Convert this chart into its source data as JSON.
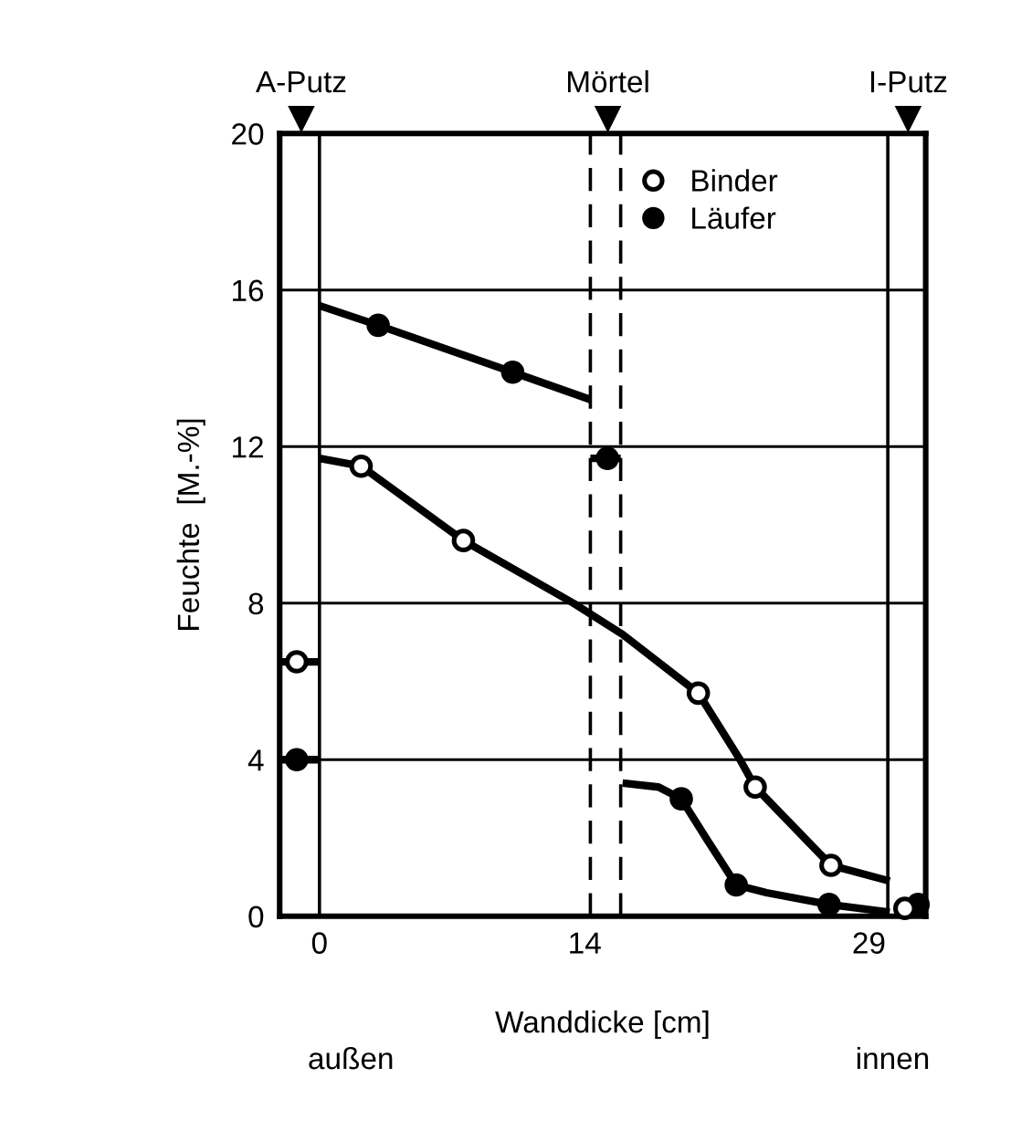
{
  "chart_data": {
    "type": "line",
    "xlabel": "Wanddicke [cm]",
    "ylabel": "Feuchte  [M.-%]",
    "annotations": [
      "außen",
      "innen",
      "A-Putz",
      "Mörtel",
      "I-Putz"
    ],
    "xlim": [
      -2.1,
      32.0
    ],
    "xticks": [
      0,
      14,
      29
    ],
    "ylim": [
      0,
      20
    ],
    "yticks": [
      0,
      4,
      8,
      12,
      16,
      20
    ],
    "grid": "y",
    "legend": "top right",
    "ref_lines": [
      {
        "axis": "x",
        "value": 0,
        "label": null,
        "color": "#000000",
        "line_style": "solid"
      },
      {
        "axis": "x",
        "value": 14.3,
        "label": null,
        "color": "#000000",
        "line_style": "dashed"
      },
      {
        "axis": "x",
        "value": 15.9,
        "label": null,
        "color": "#000000",
        "line_style": "dashed"
      },
      {
        "axis": "x",
        "value": 30.0,
        "label": null,
        "color": "#000000",
        "line_style": "solid"
      }
    ],
    "series": [
      {
        "color": "#000000",
        "marker": "none",
        "x": [
          0,
          3.1,
          10.2,
          14.3
        ],
        "values": [
          15.6,
          15.1,
          13.9,
          13.2
        ]
      },
      {
        "color": "#000000",
        "marker": "none",
        "x": [
          16.0,
          17.9,
          19.1,
          20.4,
          22.0,
          23.6,
          26.9,
          30.1
        ],
        "values": [
          3.4,
          3.3,
          3.0,
          2.0,
          0.8,
          0.6,
          0.3,
          0.1
        ]
      },
      {
        "color": "#000000",
        "marker": "none",
        "x": [
          14.3,
          15.9
        ],
        "values": [
          11.7,
          11.7
        ]
      },
      {
        "color": "#000000",
        "marker": "none",
        "x": [
          -2.1,
          0
        ],
        "values": [
          4.0,
          4.0
        ]
      },
      {
        "color": "#000000",
        "marker": "none",
        "x": [
          0,
          2.2,
          7.6,
          13.4,
          16.0,
          20.0,
          22.2,
          23.0,
          27.0,
          30.1
        ],
        "values": [
          11.7,
          11.5,
          9.6,
          8.0,
          7.2,
          5.7,
          4.0,
          3.3,
          1.3,
          0.9
        ]
      },
      {
        "color": "#000000",
        "marker": "none",
        "x": [
          -2.1,
          0
        ],
        "values": [
          6.5,
          6.5
        ]
      },
      {
        "type": "scatter",
        "name": "Binder",
        "color": "#ffffff",
        "marker": "circle",
        "x": [
          -1.2,
          2.2,
          7.6,
          20.0,
          23.0,
          27.0,
          30.9
        ],
        "values": [
          6.5,
          11.5,
          9.6,
          5.7,
          3.3,
          1.3,
          0.2
        ]
      },
      {
        "type": "scatter",
        "name": "Läufer",
        "color": "#000000",
        "marker": "circle",
        "x": [
          -1.2,
          3.1,
          10.2,
          15.2,
          19.1,
          22.0,
          26.9,
          31.6
        ],
        "values": [
          4.0,
          15.1,
          13.9,
          11.7,
          3.0,
          0.8,
          0.3,
          0.3
        ]
      }
    ]
  }
}
